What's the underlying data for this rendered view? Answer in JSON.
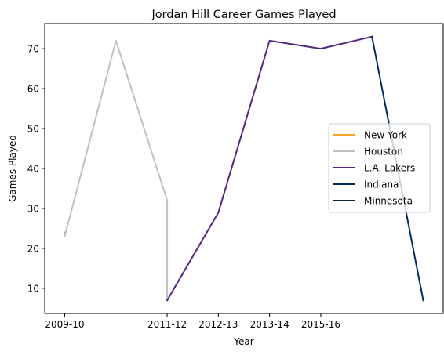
{
  "chart_data": {
    "type": "line",
    "title": "Jordan Hill  Career Games Played",
    "xlabel": "Year",
    "ylabel": "Games Played",
    "xticks": [
      {
        "x": 0,
        "label": "2009-10"
      },
      {
        "x": 2,
        "label": "2011-12"
      },
      {
        "x": 3,
        "label": "2012-13"
      },
      {
        "x": 4,
        "label": "2013-14"
      },
      {
        "x": 5,
        "label": "2015-16"
      }
    ],
    "yticks": [
      10,
      20,
      30,
      40,
      50,
      60,
      70
    ],
    "xlim": [
      -0.39,
      7.39
    ],
    "ylim": [
      3.7,
      76.3
    ],
    "grid": false,
    "legend_position": "center-right",
    "series": [
      {
        "name": "New York",
        "color": "#f5a31f",
        "points": [
          [
            0,
            24
          ],
          [
            0,
            23
          ]
        ]
      },
      {
        "name": "Houston",
        "color": "#c0c0c0",
        "points": [
          [
            0,
            23
          ],
          [
            1,
            72
          ],
          [
            2,
            32
          ],
          [
            2,
            7
          ]
        ]
      },
      {
        "name": "L.A. Lakers",
        "color": "#552583",
        "points": [
          [
            2,
            7
          ],
          [
            3,
            29
          ],
          [
            4,
            72
          ],
          [
            5,
            70
          ],
          [
            6,
            73
          ]
        ]
      },
      {
        "name": "Indiana",
        "color": "#002d62",
        "points": [
          [
            6,
            73
          ],
          [
            7,
            7
          ]
        ]
      },
      {
        "name": "Minnesota",
        "color": "#0c2340",
        "points": []
      }
    ]
  }
}
